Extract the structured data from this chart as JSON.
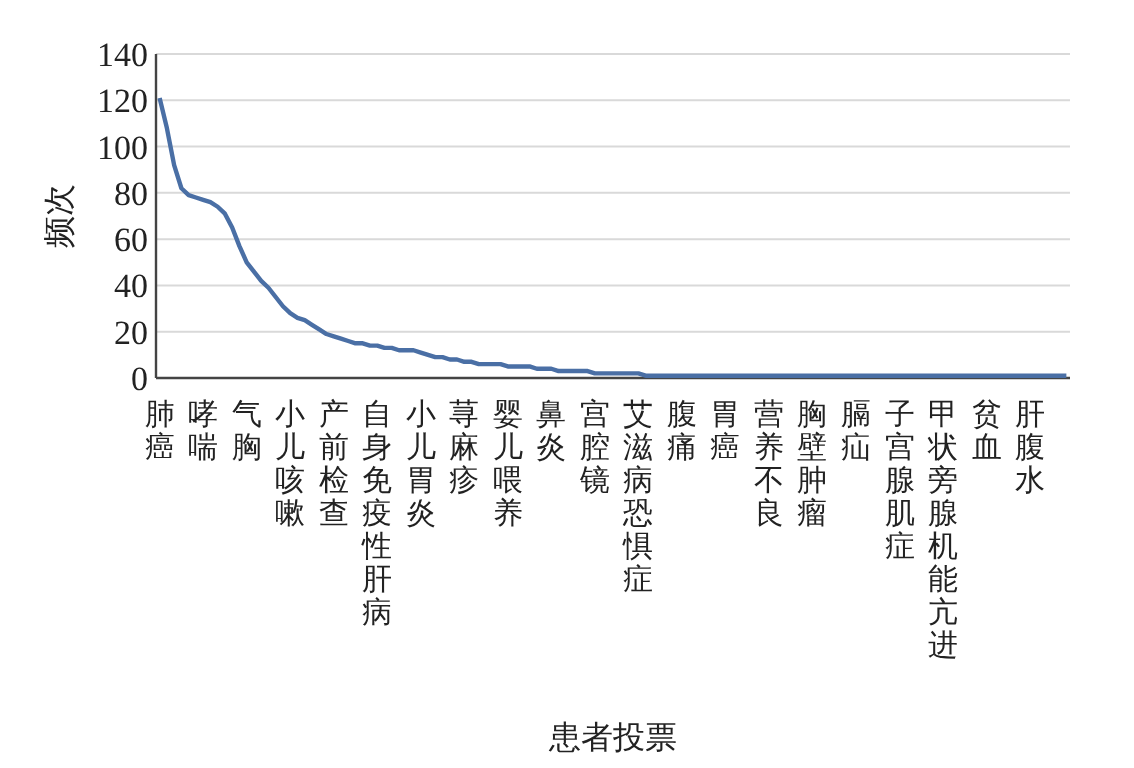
{
  "chart_data": {
    "type": "line",
    "xlabel": "患者投票",
    "ylabel": "频次",
    "categories": [
      "肺癌",
      null,
      null,
      null,
      null,
      null,
      "哮喘",
      null,
      null,
      null,
      null,
      null,
      "气胸",
      null,
      null,
      null,
      null,
      null,
      "小儿咳嗽",
      null,
      null,
      null,
      null,
      null,
      "产前检查",
      null,
      null,
      null,
      null,
      null,
      "自身免疫性肝病",
      null,
      null,
      null,
      null,
      null,
      "小儿胃炎",
      null,
      null,
      null,
      null,
      null,
      "荨麻疹",
      null,
      null,
      null,
      null,
      null,
      "婴儿喂养",
      null,
      null,
      null,
      null,
      null,
      "鼻炎",
      null,
      null,
      null,
      null,
      null,
      "宫腔镜",
      null,
      null,
      null,
      null,
      null,
      "艾滋病恐惧症",
      null,
      null,
      null,
      null,
      null,
      "腹痛",
      null,
      null,
      null,
      null,
      null,
      "胃癌",
      null,
      null,
      null,
      null,
      null,
      "营养不良",
      null,
      null,
      null,
      null,
      null,
      "胸壁肿瘤",
      null,
      null,
      null,
      null,
      null,
      "膈疝",
      null,
      null,
      null,
      null,
      null,
      "子宫腺肌症",
      null,
      null,
      null,
      null,
      null,
      "甲状旁腺机能亢进",
      null,
      null,
      null,
      null,
      null,
      "贫血",
      null,
      null,
      null,
      null,
      null,
      "肝腹水",
      null,
      null,
      null,
      null,
      null
    ],
    "series": [
      {
        "color": "#4a6fa5",
        "values": [
          121,
          108,
          92,
          82,
          79,
          78,
          77,
          76,
          74,
          71,
          65,
          57,
          50,
          46,
          42,
          39,
          35,
          31,
          28,
          26,
          25,
          23,
          21,
          19,
          18,
          17,
          16,
          15,
          15,
          14,
          14,
          13,
          13,
          12,
          12,
          12,
          11,
          10,
          9,
          9,
          8,
          8,
          7,
          7,
          6,
          6,
          6,
          6,
          5,
          5,
          5,
          5,
          4,
          4,
          4,
          3,
          3,
          3,
          3,
          3,
          2,
          2,
          2,
          2,
          2,
          2,
          2,
          1,
          1,
          1,
          1,
          1,
          1,
          1,
          1,
          1,
          1,
          1,
          1,
          1,
          1,
          1,
          1,
          1,
          1,
          1,
          1,
          1,
          1,
          1,
          1,
          1,
          1,
          1,
          1,
          1,
          1,
          1,
          1,
          1,
          1,
          1,
          1,
          1,
          1,
          1,
          1,
          1,
          1,
          1,
          1,
          1,
          1,
          1,
          1,
          1,
          1,
          1,
          1,
          1,
          1,
          1,
          1,
          1,
          1,
          1
        ]
      }
    ],
    "ylim": [
      0,
      140
    ],
    "yticks": [
      0,
      20,
      40,
      60,
      80,
      100,
      120,
      140
    ],
    "grid": "y"
  }
}
